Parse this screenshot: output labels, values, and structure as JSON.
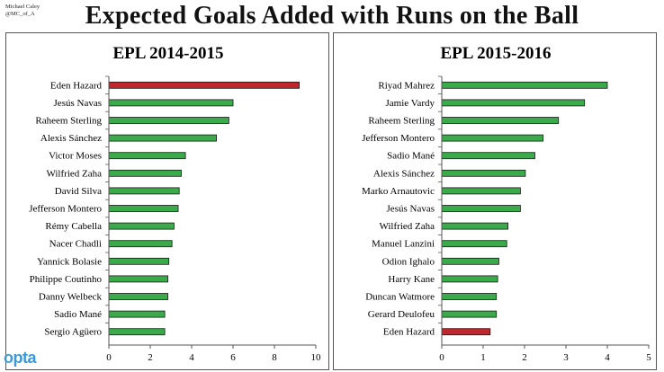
{
  "header": {
    "credit_name": "Michael Caley",
    "credit_handle": "@MC_of_A",
    "title": "Expected Goals Added with Runs on the Ball"
  },
  "logo_text": "opta",
  "colors": {
    "bar_default": "#3aaa4a",
    "bar_highlight": "#c0272d",
    "bar_stroke": "#1a1a1a"
  },
  "chart_data": [
    {
      "type": "bar",
      "orientation": "horizontal",
      "title": "EPL 2014-2015",
      "categories": [
        "Eden Hazard",
        "Jesús Navas",
        "Raheem Sterling",
        "Alexis Sánchez",
        "Victor Moses",
        "Wilfried Zaha",
        "David Silva",
        "Jefferson Montero",
        "Rémy Cabella",
        "Nacer Chadli",
        "Yannick Bolasie",
        "Philippe Coutinho",
        "Danny Welbeck",
        "Sadio Mané",
        "Sergio Agüero"
      ],
      "values": [
        9.2,
        6.0,
        5.8,
        5.2,
        3.7,
        3.5,
        3.4,
        3.35,
        3.15,
        3.05,
        2.9,
        2.85,
        2.85,
        2.7,
        2.7
      ],
      "highlight": [
        "Eden Hazard"
      ],
      "xlim": [
        0,
        10
      ],
      "xticks": [
        0,
        2,
        4,
        6,
        8,
        10
      ],
      "grid": false
    },
    {
      "type": "bar",
      "orientation": "horizontal",
      "title": "EPL 2015-2016",
      "categories": [
        "Riyad Mahrez",
        "Jamie Vardy",
        "Raheem Sterling",
        "Jefferson Montero",
        "Sadio Mané",
        "Alexis Sánchez",
        "Marko Arnautovic",
        "Jesús Navas",
        "Wilfried Zaha",
        "Manuel Lanzini",
        "Odion Ighalo",
        "Harry Kane",
        "Duncan Watmore",
        "Gerard Deulofeu",
        "Eden Hazard"
      ],
      "values": [
        4.0,
        3.45,
        2.82,
        2.45,
        2.25,
        2.02,
        1.9,
        1.9,
        1.6,
        1.57,
        1.38,
        1.35,
        1.32,
        1.32,
        1.17
      ],
      "highlight": [
        "Eden Hazard"
      ],
      "xlim": [
        0,
        5
      ],
      "xticks": [
        0,
        1,
        2,
        3,
        4,
        5
      ],
      "grid": false
    }
  ]
}
